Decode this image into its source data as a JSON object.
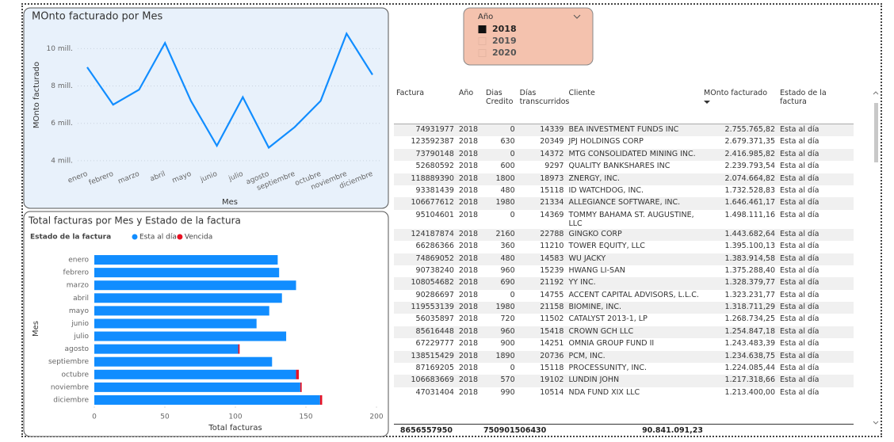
{
  "chart_data": [
    {
      "type": "line",
      "title": "MOnto facturado por Mes",
      "x_label": "Mes",
      "categories": [
        "enero",
        "febrero",
        "marzo",
        "abril",
        "mayo",
        "junio",
        "julio",
        "agosto",
        "septiembre",
        "octubre",
        "noviembre",
        "diciembre"
      ],
      "series": [
        {
          "name": "MOnto facturado",
          "color": "#118dff",
          "values": [
            9.0,
            7.0,
            7.8,
            10.3,
            7.2,
            4.8,
            7.4,
            4.7,
            5.8,
            7.2,
            10.8,
            8.6
          ]
        }
      ],
      "ylim": [
        3.7,
        11.2
      ],
      "yticks": [
        {
          "value": 4,
          "label": "4 mill."
        },
        {
          "value": 6,
          "label": "6 mill."
        },
        {
          "value": 8,
          "label": "8 mill."
        },
        {
          "value": 10,
          "label": "10 mill."
        }
      ],
      "grid": true
    },
    {
      "type": "bar",
      "orientation": "horizontal",
      "stacked": true,
      "title": "Total facturas por Mes y Estado de la factura",
      "legend_title": "Estado de la factura",
      "legend": "top-left",
      "x_label": "Total facturas",
      "y_label": "Mes",
      "categories": [
        "enero",
        "febrero",
        "marzo",
        "abril",
        "mayo",
        "junio",
        "julio",
        "agosto",
        "septiembre",
        "octubre",
        "noviembre",
        "diciembre"
      ],
      "series": [
        {
          "name": "Esta al día",
          "color": "#118dff",
          "values": [
            130,
            131,
            143,
            133,
            124,
            115,
            136,
            102,
            126,
            143,
            146,
            160
          ]
        },
        {
          "name": "Vencida",
          "color": "#e81123",
          "values": [
            0,
            0,
            0,
            0,
            0,
            0,
            0,
            1,
            0,
            2,
            1,
            1.5
          ]
        }
      ],
      "xlim": [
        0,
        200
      ],
      "xticks": [
        0,
        50,
        100,
        150,
        200
      ]
    }
  ],
  "slicer": {
    "title": "Año",
    "options": [
      "2018",
      "2019",
      "2020"
    ],
    "selected": "2018"
  },
  "table": {
    "columns": [
      "Factura",
      "Año",
      "Dias Credito",
      "Días transcurridos",
      "Cliente",
      "MOnto facturado",
      "Estado de la factura"
    ],
    "rows": [
      [
        "74931977",
        "2018",
        "0",
        "14339",
        "BEA INVESTMENT FUNDS INC",
        "2.755.765,82",
        "Esta al día"
      ],
      [
        "123592387",
        "2018",
        "630",
        "20349",
        "JPJ HOLDINGS CORP",
        "2.679.371,35",
        "Esta al día"
      ],
      [
        "73790148",
        "2018",
        "0",
        "14372",
        "MTG CONSOLIDATED MINING INC.",
        "2.416.985,82",
        "Esta al día"
      ],
      [
        "52680592",
        "2018",
        "600",
        "9297",
        "QUALITY BANKSHARES INC",
        "2.239.793,54",
        "Esta al día"
      ],
      [
        "118889390",
        "2018",
        "1800",
        "18973",
        "ZNERGY, INC.",
        "2.074.664,82",
        "Esta al día"
      ],
      [
        "93381439",
        "2018",
        "480",
        "15118",
        "ID WATCHDOG, INC.",
        "1.732.528,83",
        "Esta al día"
      ],
      [
        "106677612",
        "2018",
        "1980",
        "21334",
        "ALLEGIANCE SOFTWARE, INC.",
        "1.646.461,17",
        "Esta al día"
      ],
      [
        "95104601",
        "2018",
        "0",
        "14369",
        "TOMMY BAHAMA ST. AUGUSTINE, LLC",
        "1.498.111,16",
        "Esta al día"
      ],
      [
        "124187874",
        "2018",
        "2160",
        "22788",
        "GINGKO CORP",
        "1.443.682,64",
        "Esta al día"
      ],
      [
        "66286366",
        "2018",
        "360",
        "11210",
        "TOWER EQUITY, LLC",
        "1.395.100,13",
        "Esta al día"
      ],
      [
        "74869052",
        "2018",
        "480",
        "14583",
        "WU JACKY",
        "1.383.914,58",
        "Esta al día"
      ],
      [
        "90738240",
        "2018",
        "960",
        "15239",
        "HWANG LI-SAN",
        "1.375.288,40",
        "Esta al día"
      ],
      [
        "108054682",
        "2018",
        "690",
        "21192",
        "YY INC.",
        "1.328.379,77",
        "Esta al día"
      ],
      [
        "90286697",
        "2018",
        "0",
        "14755",
        "ACCENT CAPITAL ADVISORS, L.L.C.",
        "1.323.231,77",
        "Esta al día"
      ],
      [
        "119553139",
        "2018",
        "1980",
        "21158",
        "BIOMINE, INC.",
        "1.318.711,29",
        "Esta al día"
      ],
      [
        "56035897",
        "2018",
        "720",
        "11502",
        "CATALYST 2013-1, LP",
        "1.268.734,25",
        "Esta al día"
      ],
      [
        "85616448",
        "2018",
        "960",
        "15418",
        "CROWN GCH LLC",
        "1.254.847,18",
        "Esta al día"
      ],
      [
        "67229777",
        "2018",
        "900",
        "14251",
        "OMNIA GROUP FUND II",
        "1.243.483,39",
        "Esta al día"
      ],
      [
        "138515429",
        "2018",
        "1890",
        "20736",
        "PCM, INC.",
        "1.234.638,75",
        "Esta al día"
      ],
      [
        "87169205",
        "2018",
        "0",
        "15118",
        "PROCESSUNITY, INC.",
        "1.224.085,44",
        "Esta al día"
      ],
      [
        "106683669",
        "2018",
        "570",
        "19102",
        "LUNDIN JOHN",
        "1.217.318,66",
        "Esta al día"
      ],
      [
        "47031404",
        "2018",
        "990",
        "10514",
        "NDA FUND XIX LLC",
        "1.213.400,00",
        "Esta al día"
      ]
    ],
    "totals": {
      "factura": "8656557950",
      "dias_credito": "75090",
      "dias_transcurridos": "1506430",
      "monto": "90.841.091,23"
    }
  }
}
